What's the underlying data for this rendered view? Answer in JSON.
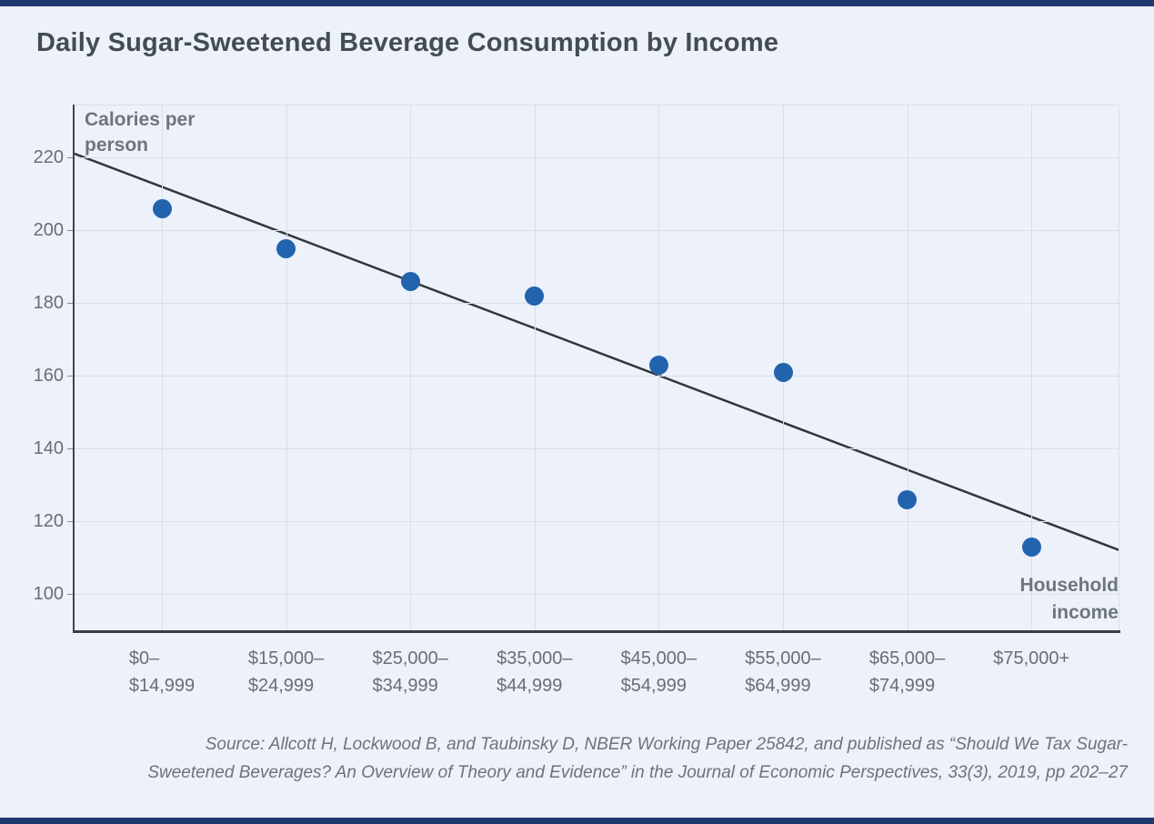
{
  "page": {
    "background_color": "#edf1f9",
    "accent_bar_color": "#1e3a6d"
  },
  "chart_data": {
    "type": "scatter",
    "title": "Daily Sugar-Sweetened Beverage Consumption by Income",
    "ylabel": "Calories per person",
    "ylabel_lines": [
      "Calories per",
      "person"
    ],
    "xlabel": "Household income",
    "xlabel_lines": [
      "Household",
      "income"
    ],
    "categories": [
      "$0–\n$14,999",
      "$15,000–\n$24,999",
      "$25,000–\n$34,999",
      "$35,000–\n$44,999",
      "$45,000–\n$54,999",
      "$55,000–\n$64,999",
      "$65,000–\n$74,999",
      "$75,000+"
    ],
    "values": [
      206,
      195,
      186,
      182,
      163,
      161,
      126,
      113
    ],
    "trendline": {
      "start_value": 221,
      "end_value": 112
    },
    "yticks": [
      220,
      200,
      180,
      160,
      140,
      120,
      100
    ],
    "ylim": [
      90,
      234.5
    ],
    "grid": true,
    "legend": "none",
    "point_color": "#2263ae",
    "line_color": "#31363c",
    "grid_color": "#d8dfeb"
  },
  "source": {
    "line1": "Source: Allcott H, Lockwood B, and Taubinsky D, NBER Working Paper 25842, and published as “Should We Tax Sugar-",
    "line2": "Sweetened Beverages? An Overview of Theory and Evidence” in the Journal of Economic Perspectives, 33(3), 2019, pp 202–27"
  }
}
